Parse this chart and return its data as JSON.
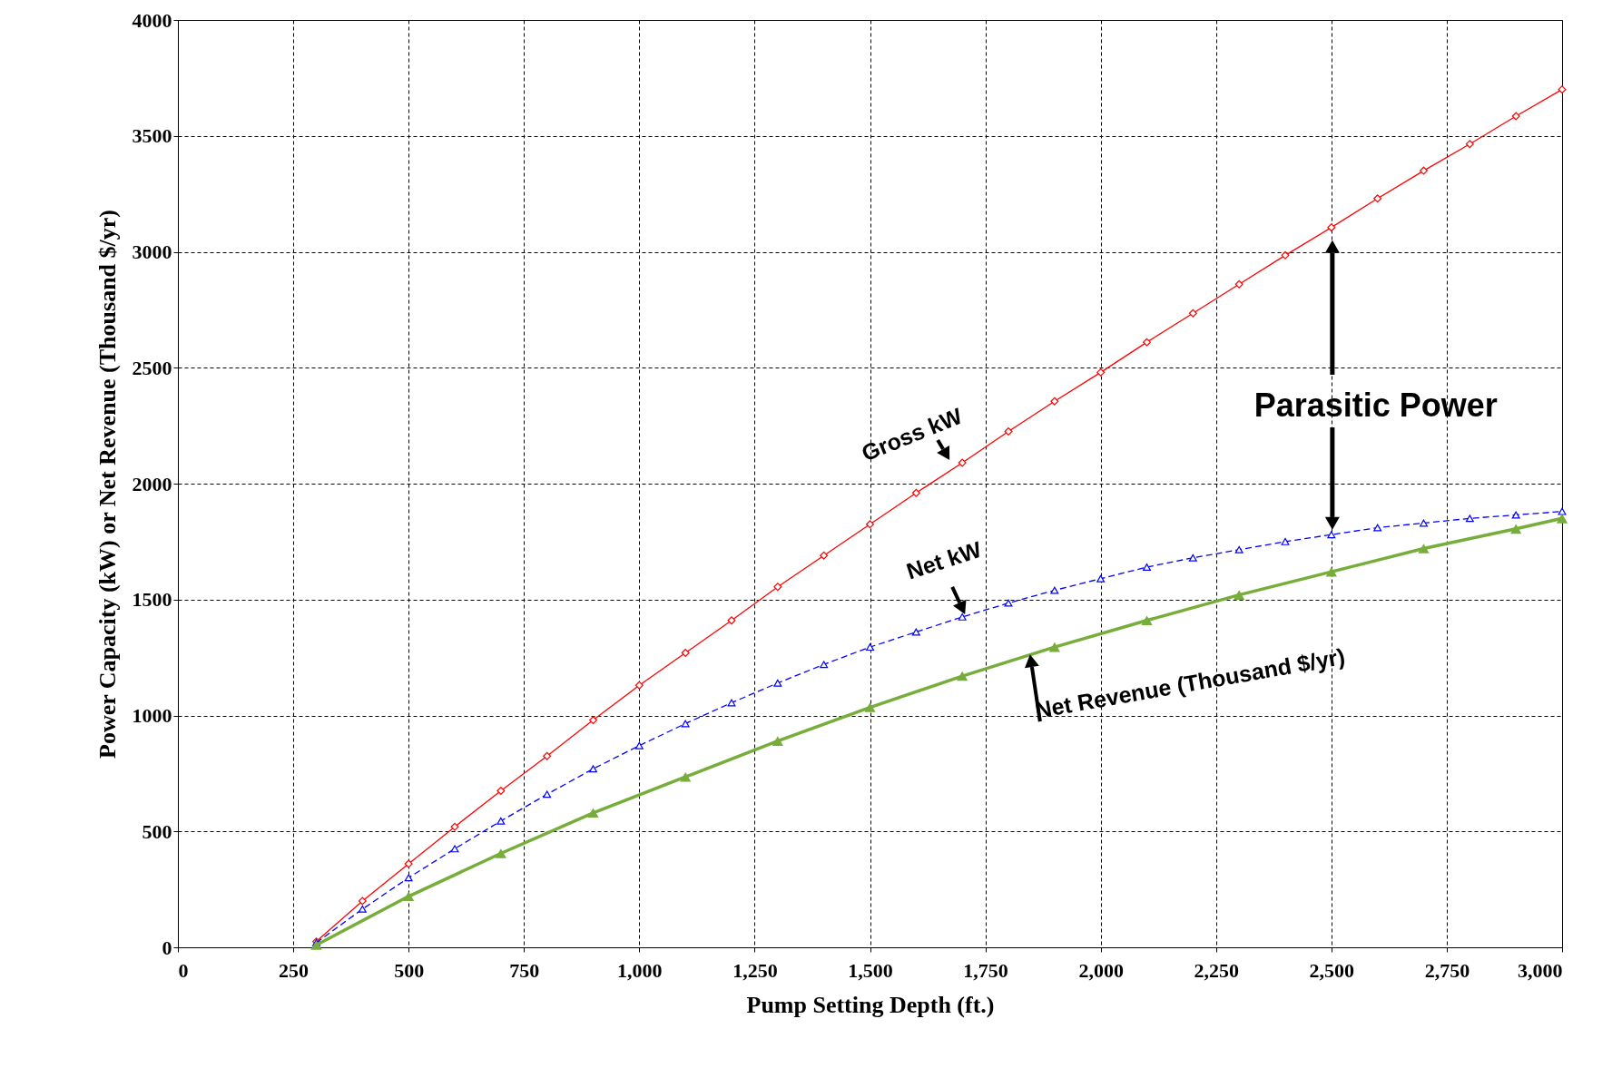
{
  "chart_data": {
    "type": "line",
    "xlabel": "Pump Setting Depth (ft.)",
    "ylabel": "Power Capacity (kW) or Net Revenue (Thousand $/yr)",
    "xlim": [
      0,
      3000
    ],
    "ylim": [
      0,
      4000
    ],
    "xticks": [
      0,
      250,
      500,
      750,
      {
        "value": 1000,
        "label": "1,000"
      },
      {
        "value": 1250,
        "label": "1,250"
      },
      {
        "value": 1500,
        "label": "1,500"
      },
      {
        "value": 1750,
        "label": "1,750"
      },
      {
        "value": 2000,
        "label": "2,000"
      },
      {
        "value": 2250,
        "label": "2,250"
      },
      {
        "value": 2500,
        "label": "2,500"
      },
      {
        "value": 2750,
        "label": "2,750"
      },
      {
        "value": 3000,
        "label": "3,000"
      }
    ],
    "yticks": [
      0,
      500,
      1000,
      1500,
      2000,
      2500,
      3000,
      3500,
      4000
    ],
    "grid": true,
    "series": [
      {
        "name": "Gross kW",
        "color": "#ff0000",
        "marker": "diamond",
        "line_style": "solid",
        "x": [
          300,
          400,
          500,
          600,
          700,
          800,
          900,
          1000,
          1100,
          1200,
          1300,
          1400,
          1500,
          1600,
          1700,
          1800,
          1900,
          2000,
          2100,
          2200,
          2300,
          2400,
          2500,
          2600,
          2700,
          2800,
          2900,
          3000
        ],
        "values": [
          25,
          200,
          360,
          520,
          675,
          825,
          980,
          1130,
          1270,
          1410,
          1555,
          1690,
          1825,
          1960,
          2090,
          2225,
          2355,
          2480,
          2610,
          2735,
          2860,
          2985,
          3105,
          3230,
          3350,
          3465,
          3585,
          3700
        ]
      },
      {
        "name": "Net kW",
        "color": "#0000ff",
        "marker": "triangle",
        "line_style": "dashed",
        "x": [
          300,
          400,
          500,
          600,
          700,
          800,
          900,
          1000,
          1100,
          1200,
          1300,
          1400,
          1500,
          1600,
          1700,
          1800,
          1900,
          2000,
          2100,
          2200,
          2300,
          2400,
          2500,
          2600,
          2700,
          2800,
          2900,
          3000
        ],
        "values": [
          20,
          165,
          300,
          425,
          545,
          660,
          770,
          870,
          965,
          1055,
          1140,
          1220,
          1295,
          1360,
          1425,
          1485,
          1540,
          1590,
          1640,
          1680,
          1715,
          1750,
          1780,
          1810,
          1830,
          1850,
          1865,
          1880
        ]
      },
      {
        "name": "Net Revenue (Thousand  $/yr)",
        "color": "#77ad3a",
        "marker": "triangle",
        "line_style": "solid",
        "x": [
          300,
          500,
          700,
          900,
          1100,
          1300,
          1500,
          1700,
          1900,
          2100,
          2300,
          2500,
          2700,
          2900,
          3000
        ],
        "values": [
          10,
          220,
          405,
          580,
          735,
          890,
          1035,
          1170,
          1295,
          1410,
          1520,
          1620,
          1720,
          1805,
          1850
        ]
      }
    ],
    "annotations": [
      "Parasitic Power"
    ]
  }
}
